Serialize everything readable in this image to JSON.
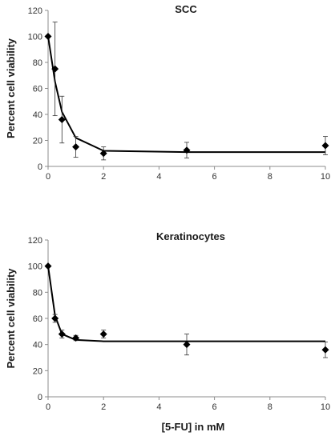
{
  "chart_data": [
    {
      "type": "scatter",
      "title": "SCC",
      "ylabel": "Percent cell viability",
      "xlabel": "",
      "xlim": [
        0,
        10
      ],
      "ylim": [
        0,
        120
      ],
      "x_ticks": [
        "0",
        "2",
        "4",
        "6",
        "8",
        "10"
      ],
      "y_ticks": [
        "0",
        "20",
        "40",
        "60",
        "80",
        "100",
        "120"
      ],
      "grid": false,
      "points": [
        {
          "x": 0,
          "y": 100,
          "err": 0
        },
        {
          "x": 0.25,
          "y": 75,
          "err": 36
        },
        {
          "x": 0.5,
          "y": 36,
          "err": 18
        },
        {
          "x": 1,
          "y": 15,
          "err": 8
        },
        {
          "x": 2,
          "y": 10,
          "err": 5
        },
        {
          "x": 5,
          "y": 12.5,
          "err": 6
        },
        {
          "x": 10,
          "y": 16,
          "err": 7
        }
      ],
      "fit": [
        {
          "x": 0,
          "y": 100
        },
        {
          "x": 0.25,
          "y": 65
        },
        {
          "x": 0.5,
          "y": 42
        },
        {
          "x": 1,
          "y": 22
        },
        {
          "x": 2,
          "y": 12
        },
        {
          "x": 5,
          "y": 11
        },
        {
          "x": 10,
          "y": 11
        }
      ]
    },
    {
      "type": "scatter",
      "title": "Keratinocytes",
      "ylabel": "Percent cell viability",
      "xlabel": "[5-FU] in mM",
      "xlim": [
        0,
        10
      ],
      "ylim": [
        0,
        120
      ],
      "x_ticks": [
        "0",
        "2",
        "4",
        "6",
        "8",
        "10"
      ],
      "y_ticks": [
        "0",
        "20",
        "40",
        "60",
        "80",
        "100",
        "120"
      ],
      "grid": false,
      "points": [
        {
          "x": 0,
          "y": 100,
          "err": 0
        },
        {
          "x": 0.25,
          "y": 60,
          "err": 3
        },
        {
          "x": 0.5,
          "y": 48,
          "err": 3
        },
        {
          "x": 1,
          "y": 45,
          "err": 2
        },
        {
          "x": 2,
          "y": 48,
          "err": 3
        },
        {
          "x": 5,
          "y": 40,
          "err": 8
        },
        {
          "x": 10,
          "y": 36,
          "err": 6
        }
      ],
      "fit": [
        {
          "x": 0,
          "y": 100
        },
        {
          "x": 0.25,
          "y": 62
        },
        {
          "x": 0.5,
          "y": 48
        },
        {
          "x": 1,
          "y": 43.5
        },
        {
          "x": 2,
          "y": 42.5
        },
        {
          "x": 5,
          "y": 42.5
        },
        {
          "x": 10,
          "y": 42.5
        }
      ]
    }
  ]
}
